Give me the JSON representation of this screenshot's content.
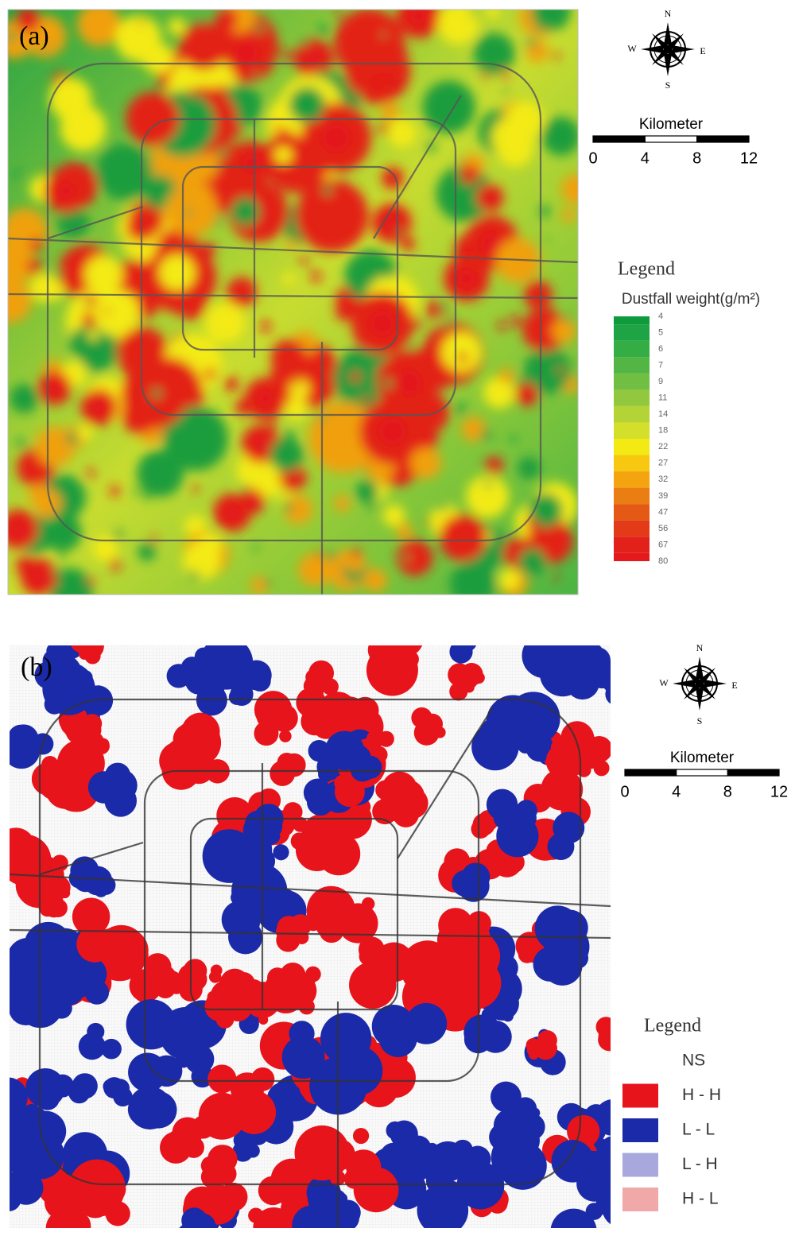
{
  "panels": [
    {
      "label": "(a)",
      "compass": {
        "n": "N",
        "s": "S",
        "e": "E",
        "w": "W"
      },
      "scale": {
        "title": "Kilometer",
        "ticks": [
          0,
          4,
          8,
          12
        ]
      },
      "legend": {
        "title": "Legend",
        "subtitle": "Dustfall weight(g/m²)",
        "items": [
          "4",
          "5",
          "6",
          "7",
          "9",
          "11",
          "14",
          "18",
          "22",
          "27",
          "32",
          "39",
          "47",
          "56",
          "67",
          "80"
        ],
        "colors": [
          "#0f9a3c",
          "#1ea445",
          "#35ad45",
          "#52b544",
          "#70be42",
          "#92c83e",
          "#b3d337",
          "#d3df2a",
          "#f2ea12",
          "#f8c810",
          "#f3a40f",
          "#ea7e12",
          "#e45a15",
          "#e33a17",
          "#e3211b",
          "#e3191c"
        ]
      }
    },
    {
      "label": "(b)",
      "compass": {
        "n": "N",
        "s": "S",
        "e": "E",
        "w": "W"
      },
      "scale": {
        "title": "Kilometer",
        "ticks": [
          0,
          4,
          8,
          12
        ]
      },
      "legend": {
        "title": "Legend",
        "items": [
          {
            "label": "NS",
            "color": "#ffffff"
          },
          {
            "label": "H - H",
            "color": "#e8141c"
          },
          {
            "label": "L - L",
            "color": "#1b2aa8"
          },
          {
            "label": "L - H",
            "color": "#a8a8dc"
          },
          {
            "label": "H - L",
            "color": "#f0a8a8"
          }
        ]
      }
    }
  ]
}
